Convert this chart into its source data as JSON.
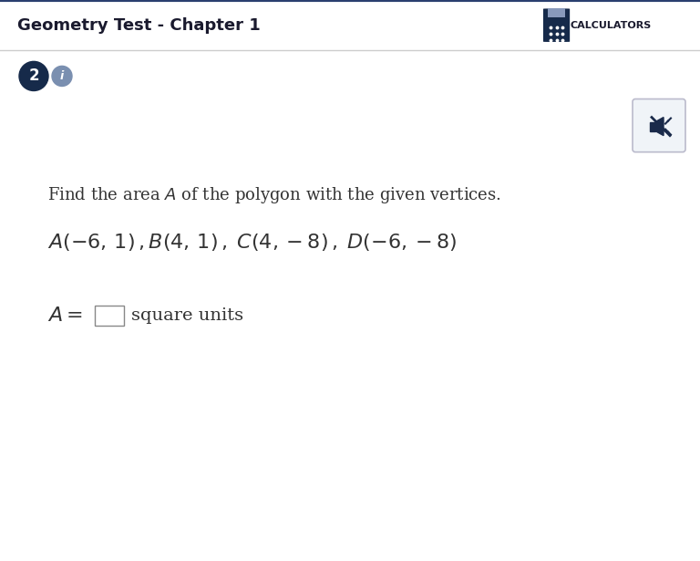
{
  "title": "Geometry Test - Chapter 1",
  "header_bg": "#e8e8e8",
  "header_border_top": "#2a3f6f",
  "header_border_bottom": "#cccccc",
  "header_text_color": "#1a1a2e",
  "calculators_text": "CALCULATORS",
  "question_number": "2",
  "question_number_bg": "#162a4a",
  "info_circle_bg": "#8899bb",
  "info_text": "i",
  "body_bg": "#ffffff",
  "body_text_color": "#333333",
  "font_size_title": 13,
  "font_size_body": 13,
  "font_size_vertices": 14,
  "font_size_answer": 14,
  "mute_icon_bg": "#f0f4f8",
  "mute_icon_border": "#aaaaaa",
  "calc_icon_color": "#162a4a"
}
